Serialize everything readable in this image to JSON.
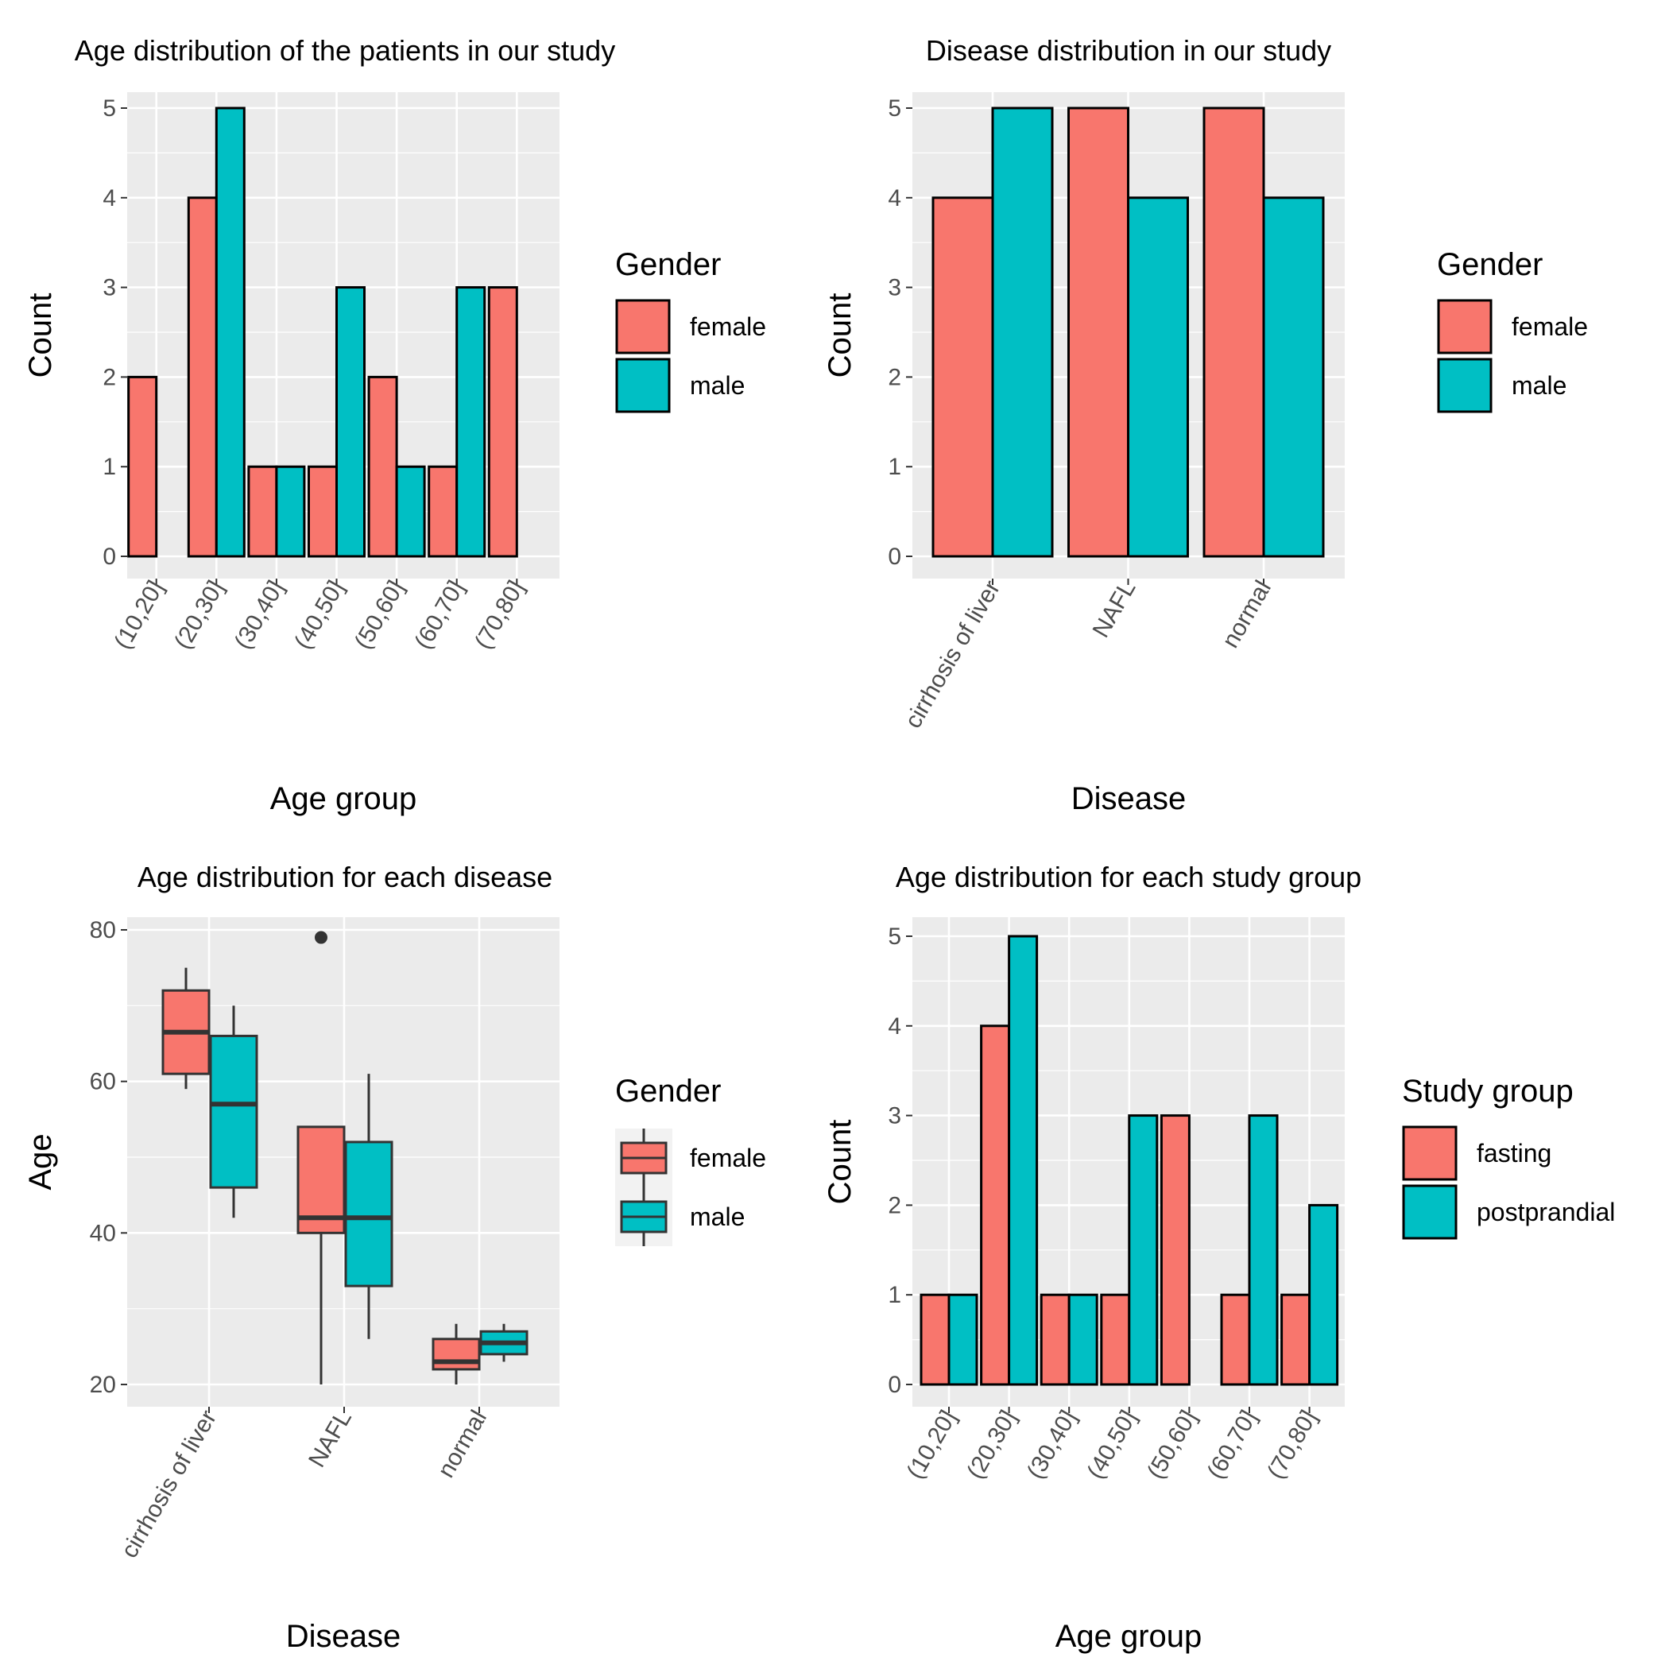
{
  "colors": {
    "female": "#f8766d",
    "male": "#00bfc4",
    "panel": "#ebebeb",
    "grid": "#ffffff",
    "outline": "#000000",
    "box_line": "#333333"
  },
  "chart_data": [
    {
      "type": "bar",
      "title": "Age distribution of the patients in our study",
      "xlabel": "Age group",
      "ylabel": "Count",
      "categories": [
        "(10,20]",
        "(20,30]",
        "(30,40]",
        "(40,50]",
        "(50,60]",
        "(60,70]",
        "(70,80]"
      ],
      "ylim": [
        0,
        5
      ],
      "yticks": [
        "0",
        "1",
        "2",
        "3",
        "4",
        "5"
      ],
      "legend_title": "Gender",
      "series": [
        {
          "name": "female",
          "values": [
            2,
            4,
            1,
            1,
            2,
            1,
            3
          ]
        },
        {
          "name": "male",
          "values": [
            0,
            5,
            1,
            3,
            1,
            3,
            0
          ]
        }
      ]
    },
    {
      "type": "bar",
      "title": "Disease distribution in our study",
      "xlabel": "Disease",
      "ylabel": "Count",
      "categories": [
        "cirrhosis of liver",
        "NAFL",
        "normal"
      ],
      "ylim": [
        0,
        5
      ],
      "yticks": [
        "0",
        "1",
        "2",
        "3",
        "4",
        "5"
      ],
      "legend_title": "Gender",
      "series": [
        {
          "name": "female",
          "values": [
            4,
            5,
            5
          ]
        },
        {
          "name": "male",
          "values": [
            5,
            4,
            4
          ]
        }
      ]
    },
    {
      "type": "box",
      "title": "Age distribution for each disease",
      "xlabel": "Disease",
      "ylabel": "Age",
      "categories": [
        "cirrhosis of liver",
        "NAFL",
        "normal"
      ],
      "ylim": [
        20,
        80
      ],
      "yticks": [
        "20",
        "40",
        "60",
        "80"
      ],
      "legend_title": "Gender",
      "series": [
        {
          "name": "female",
          "boxes": [
            {
              "min": 59,
              "q1": 61,
              "median": 66.5,
              "q3": 72,
              "max": 75,
              "outliers": []
            },
            {
              "min": 20,
              "q1": 40,
              "median": 42,
              "q3": 54,
              "max": 54,
              "outliers": [
                79
              ]
            },
            {
              "min": 20,
              "q1": 22,
              "median": 23,
              "q3": 26,
              "max": 28,
              "outliers": []
            }
          ]
        },
        {
          "name": "male",
          "boxes": [
            {
              "min": 42,
              "q1": 46,
              "median": 57,
              "q3": 66,
              "max": 70,
              "outliers": []
            },
            {
              "min": 26,
              "q1": 33,
              "median": 42,
              "q3": 52,
              "max": 61,
              "outliers": []
            },
            {
              "min": 23,
              "q1": 24,
              "median": 25.5,
              "q3": 27,
              "max": 28,
              "outliers": []
            }
          ]
        }
      ]
    },
    {
      "type": "bar",
      "title": "Age distribution for each study group",
      "xlabel": "Age group",
      "ylabel": "Count",
      "categories": [
        "(10,20]",
        "(20,30]",
        "(30,40]",
        "(40,50]",
        "(50,60]",
        "(60,70]",
        "(70,80]"
      ],
      "ylim": [
        0,
        5
      ],
      "yticks": [
        "0",
        "1",
        "2",
        "3",
        "4",
        "5"
      ],
      "legend_title": "Study group",
      "series": [
        {
          "name": "fasting",
          "values": [
            1,
            4,
            1,
            1,
            3,
            1,
            1
          ]
        },
        {
          "name": "postprandial",
          "values": [
            1,
            5,
            1,
            3,
            0,
            3,
            2
          ]
        }
      ]
    }
  ]
}
